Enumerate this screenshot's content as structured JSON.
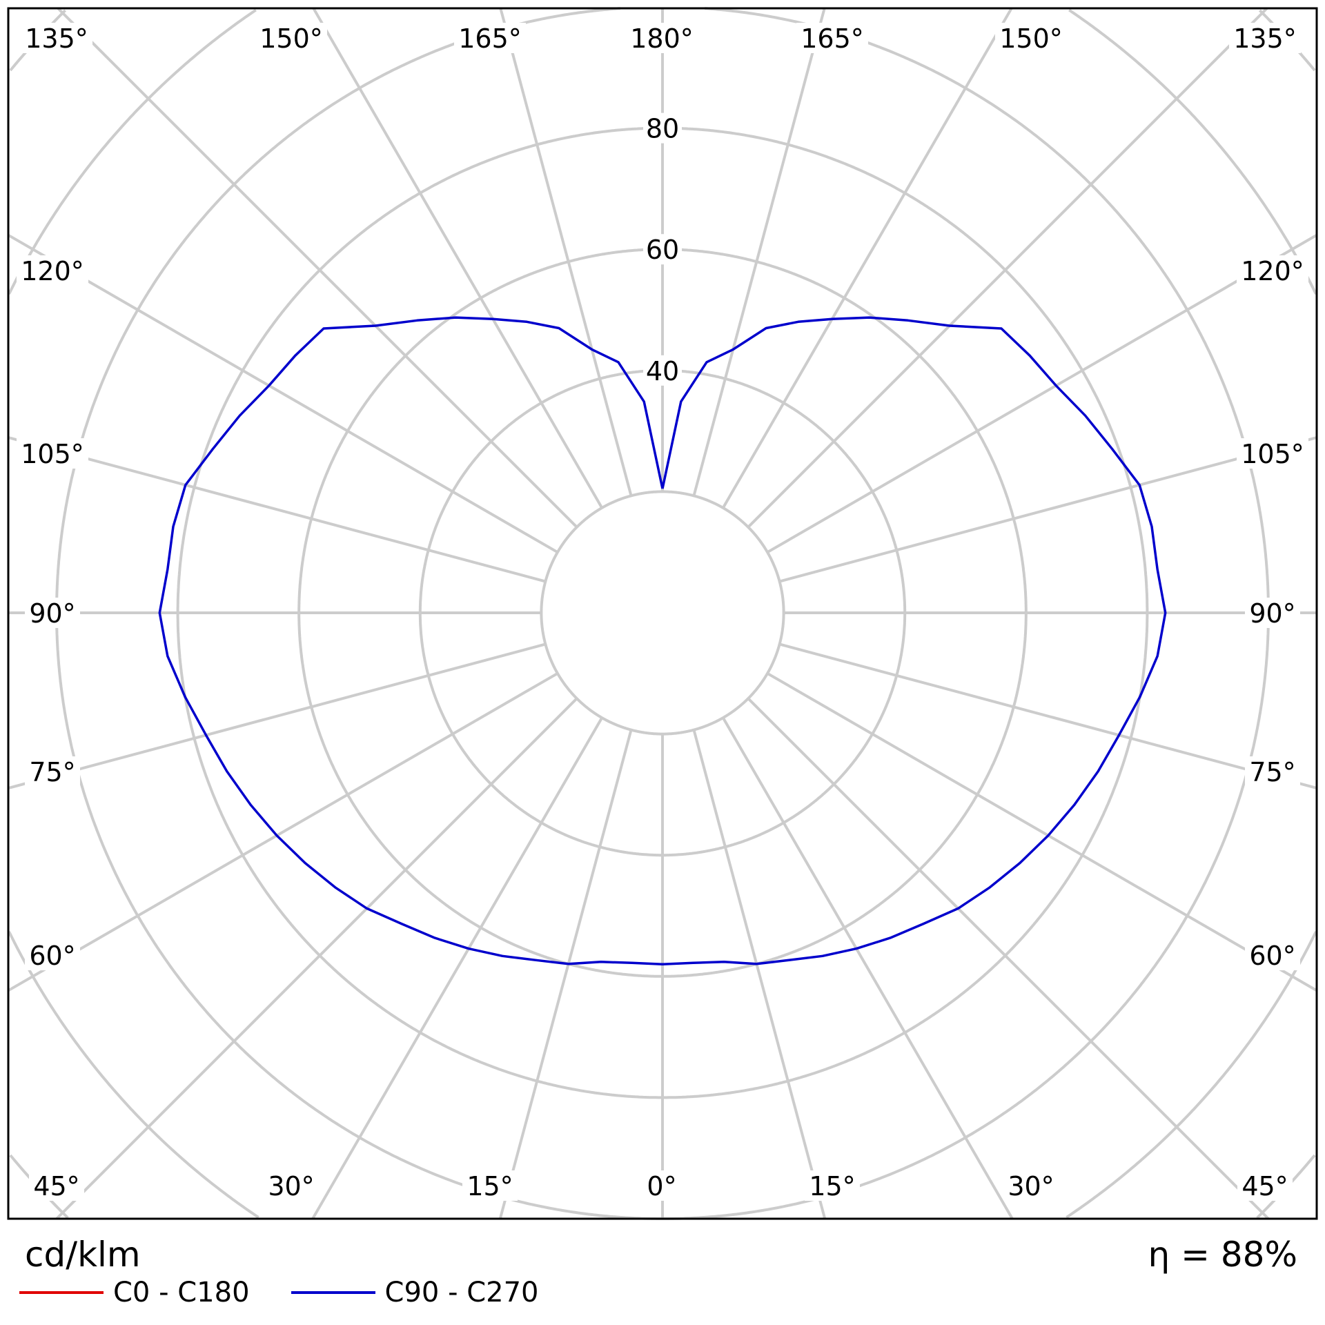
{
  "chart_data": {
    "type": "polar",
    "unit_label": "cd/klm",
    "efficiency_label": "η = 88%",
    "radial_ticks": [
      20,
      40,
      60,
      80,
      100,
      120,
      140,
      160
    ],
    "radial_tick_labels": [
      "40",
      "60",
      "80"
    ],
    "angle_step_deg": 15,
    "angle_labels": {
      "top": [
        "135°",
        "150°",
        "165°",
        "180°",
        "165°",
        "150°",
        "135°"
      ],
      "left": [
        "120°",
        "105°",
        "90°",
        "75°",
        "60°"
      ],
      "right": [
        "120°",
        "105°",
        "90°",
        "75°",
        "60°"
      ],
      "bottom": [
        "45°",
        "30°",
        "15°",
        "0°",
        "15°",
        "30°",
        "45°"
      ]
    },
    "grid": true,
    "legend_placement": "bottom-left",
    "series": [
      {
        "name": "C0 - C180",
        "color": "#e00000",
        "gamma": [],
        "values": []
      },
      {
        "name": "C90 - C270",
        "color": "#0000cc",
        "gamma": [
          0,
          5,
          10,
          15,
          20,
          25,
          30,
          35,
          40,
          45,
          50,
          55,
          60,
          65,
          70,
          75,
          80,
          85,
          90,
          95,
          100,
          105,
          110,
          115,
          120,
          125,
          130,
          135,
          140,
          145,
          150,
          155,
          160,
          165,
          170,
          175,
          180
        ],
        "values": [
          58,
          58,
          58.5,
          60,
          61,
          62.5,
          64,
          65.5,
          67,
          69,
          70.5,
          72,
          73.5,
          75,
          76.5,
          78,
          80,
          82,
          83,
          82,
          82,
          81.5,
          79,
          77,
          75,
          74,
          73,
          67,
          63,
          59.5,
          56,
          53,
          50,
          45,
          42,
          35,
          20.5
        ]
      }
    ],
    "grid_color": "#cccccc"
  }
}
